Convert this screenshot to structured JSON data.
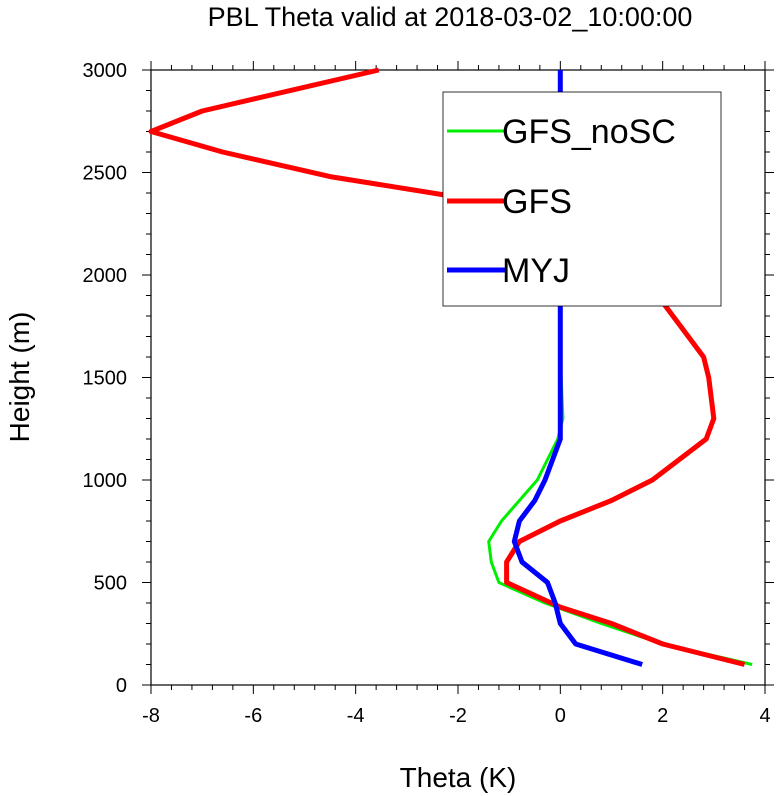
{
  "chart_data": {
    "type": "line",
    "title": "PBL Theta valid at 2018-03-02_10:00:00",
    "xlabel": "Theta (K)",
    "ylabel": "Height (m)",
    "xlim": [
      -8,
      4
    ],
    "ylim": [
      0,
      3000
    ],
    "xticks": [
      -8,
      -6,
      -4,
      -2,
      0,
      2,
      4
    ],
    "yticks": [
      0,
      500,
      1000,
      1500,
      2000,
      2500,
      3000
    ],
    "xtick_labels": [
      "-8",
      "-6",
      "-4",
      "-2",
      "0",
      "2",
      "4"
    ],
    "ytick_labels": [
      "0",
      "500",
      "1000",
      "1500",
      "2000",
      "2500",
      "3000"
    ],
    "grid": false,
    "legend_position": "top-right",
    "series": [
      {
        "name": "GFS_noSC",
        "color": "#00ee00",
        "points": [
          [
            3.75,
            100
          ],
          [
            2.0,
            200
          ],
          [
            0.8,
            300
          ],
          [
            -0.3,
            400
          ],
          [
            -1.2,
            500
          ],
          [
            -1.35,
            600
          ],
          [
            -1.4,
            700
          ],
          [
            -1.15,
            800
          ],
          [
            -0.8,
            900
          ],
          [
            -0.45,
            1000
          ],
          [
            -0.25,
            1100
          ],
          [
            -0.05,
            1200
          ],
          [
            0.05,
            1300
          ],
          [
            0.0,
            1600
          ],
          [
            0.0,
            2000
          ],
          [
            0.0,
            2500
          ],
          [
            0.0,
            3000
          ]
        ]
      },
      {
        "name": "GFS",
        "color": "#ff0000",
        "points": [
          [
            3.6,
            100
          ],
          [
            2.0,
            200
          ],
          [
            1.0,
            300
          ],
          [
            0.0,
            380
          ],
          [
            -1.05,
            500
          ],
          [
            -1.05,
            600
          ],
          [
            -0.8,
            700
          ],
          [
            0.0,
            800
          ],
          [
            1.0,
            900
          ],
          [
            1.8,
            1000
          ],
          [
            2.85,
            1200
          ],
          [
            3.0,
            1300
          ],
          [
            2.9,
            1500
          ],
          [
            2.8,
            1600
          ],
          [
            1.9,
            1900
          ],
          [
            1.45,
            2000
          ],
          [
            0.25,
            2200
          ],
          [
            -0.8,
            2300
          ],
          [
            -2.0,
            2380
          ],
          [
            -4.5,
            2480
          ],
          [
            -6.6,
            2600
          ],
          [
            -8.0,
            2700
          ],
          [
            -7.0,
            2800
          ],
          [
            -3.55,
            3000
          ]
        ]
      },
      {
        "name": "MYJ",
        "color": "#0000ff",
        "points": [
          [
            1.6,
            100
          ],
          [
            0.3,
            200
          ],
          [
            0.0,
            300
          ],
          [
            -0.1,
            400
          ],
          [
            -0.25,
            500
          ],
          [
            -0.75,
            600
          ],
          [
            -0.9,
            700
          ],
          [
            -0.8,
            800
          ],
          [
            -0.5,
            900
          ],
          [
            -0.3,
            1000
          ],
          [
            0.0,
            1200
          ],
          [
            0.0,
            1500
          ],
          [
            0.0,
            2000
          ],
          [
            0.0,
            2500
          ],
          [
            0.0,
            3000
          ]
        ]
      }
    ]
  }
}
